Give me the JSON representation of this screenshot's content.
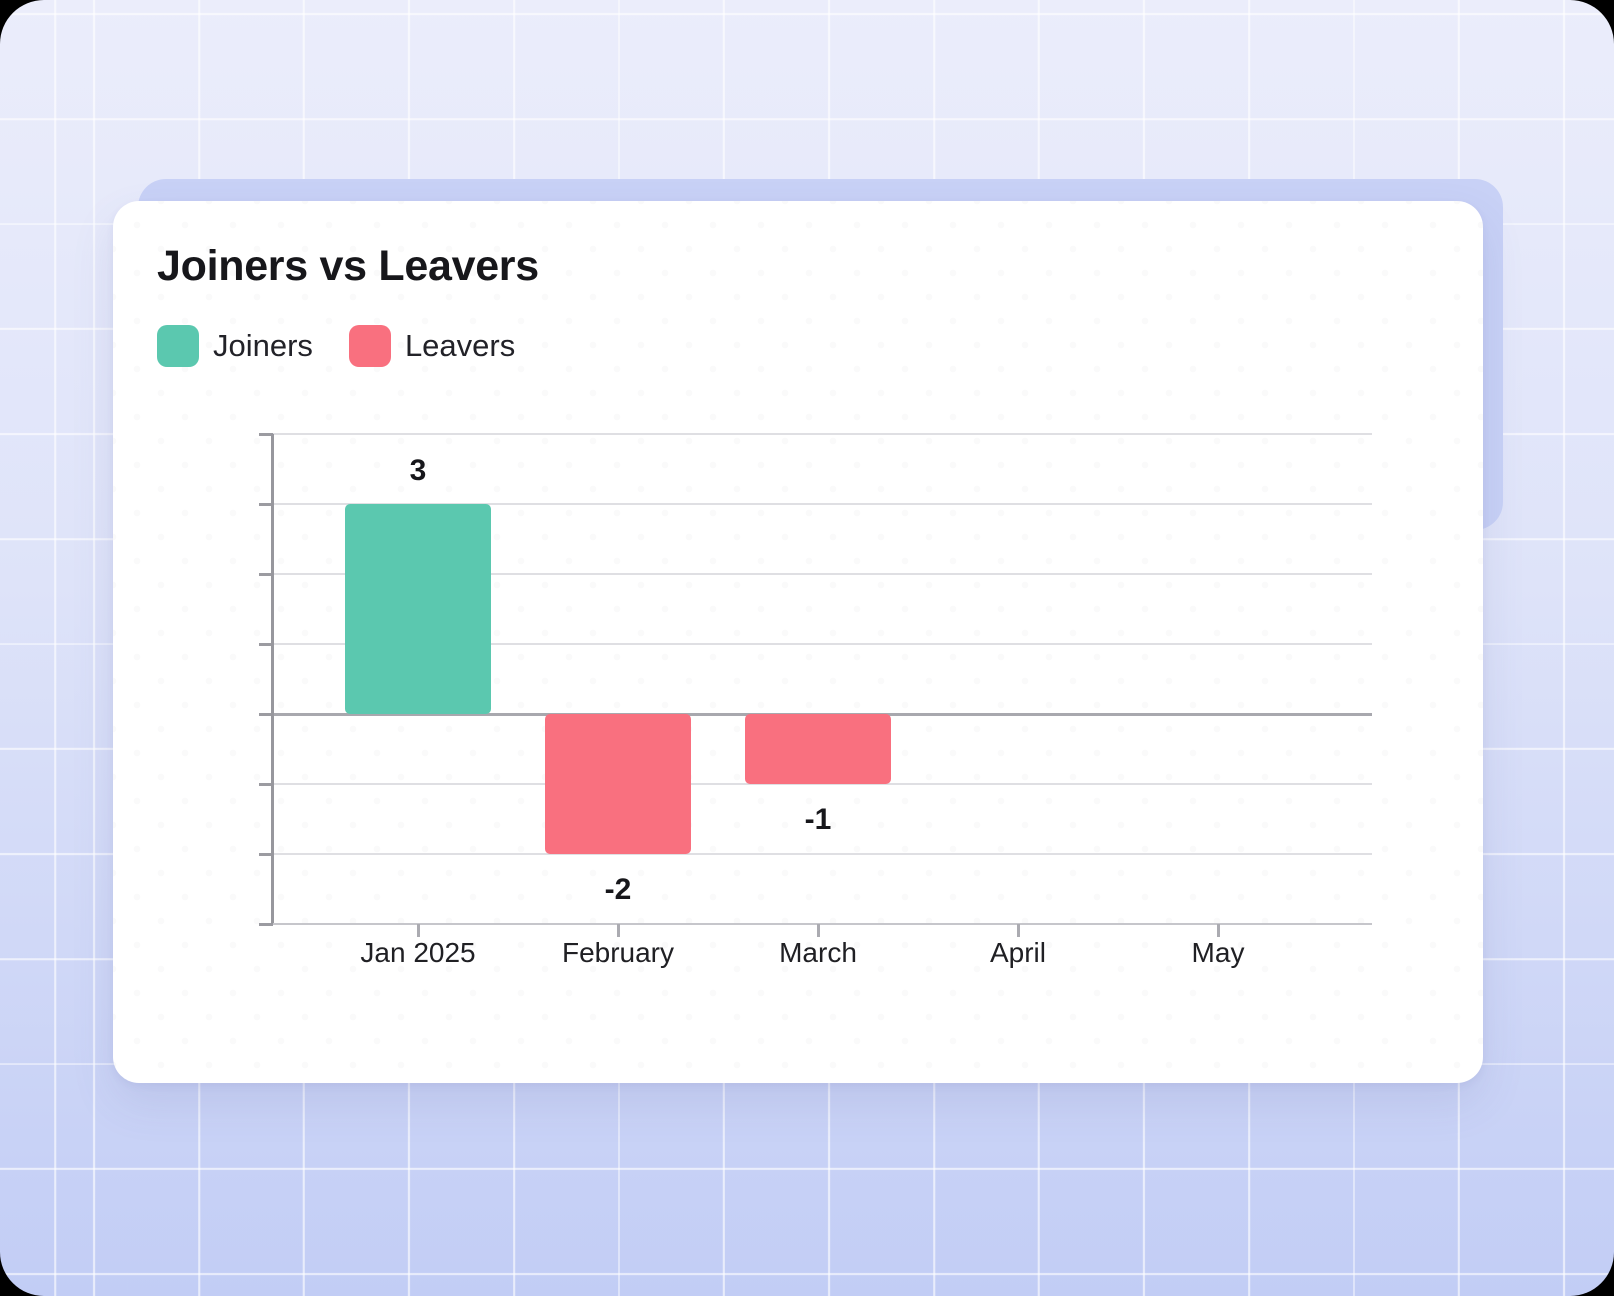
{
  "card": {
    "title": "Joiners vs Leavers",
    "legend": [
      {
        "label": "Joiners",
        "color": "#5BC8AF"
      },
      {
        "label": "Leavers",
        "color": "#F9707F"
      }
    ]
  },
  "chart_data": {
    "type": "bar",
    "title": "Joiners vs Leavers",
    "categories": [
      "Jan 2025",
      "February",
      "March",
      "April",
      "May"
    ],
    "series": [
      {
        "name": "Joiners",
        "color": "#5BC8AF",
        "values": [
          3,
          null,
          null,
          null,
          null
        ]
      },
      {
        "name": "Leavers",
        "color": "#F9707F",
        "values": [
          null,
          -2,
          -1,
          null,
          null
        ]
      }
    ],
    "data_labels": true,
    "xlabel": "",
    "ylabel": "",
    "ylim": [
      -3,
      4
    ],
    "grid": true,
    "y_axis_tick_labels": false,
    "legend_position": "top-left",
    "colors": {
      "gridline": "#DFDFE3",
      "zero_line": "#A8A8AE",
      "axis": "#97979D",
      "label_text": "#17171B"
    }
  }
}
